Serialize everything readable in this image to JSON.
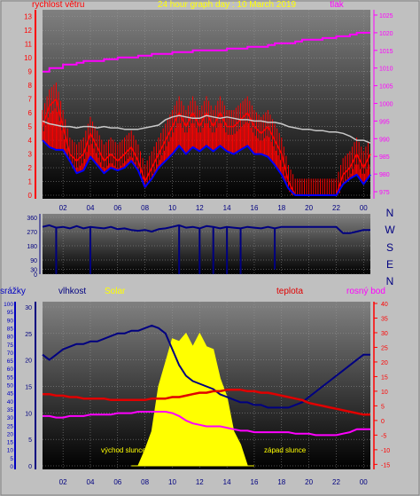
{
  "colors": {
    "background": "#c0c0c0",
    "plot_top": "#808080",
    "plot_bottom": "#000000",
    "wind_gust": "#ff0000",
    "wind_avg": "#0000ff",
    "wind_light": "#c8c8c8",
    "pressure": "#ff00ff",
    "direction": "#000080",
    "humidity": "#000080",
    "temperature": "#e00000",
    "dewpoint": "#ff00ff",
    "solar": "#ffff00",
    "rain_axis": "#0000c0",
    "humidity_axis": "#000080",
    "temp_axis": "#ff0000",
    "title": "#ffff00",
    "sun_label": "#ffff00",
    "compass": "#000080"
  },
  "chart_data": [
    {
      "type": "line",
      "title": "24 hour graph day : 10 March 2019",
      "y_left_label": "rychlost větru",
      "y_right_label": "tlak",
      "x_ticks": [
        "02",
        "04",
        "06",
        "08",
        "10",
        "12",
        "14",
        "16",
        "18",
        "20",
        "22",
        "00"
      ],
      "x_range": [
        0.5,
        24.5
      ],
      "y_left_ticks": [
        0,
        1,
        2,
        3,
        4,
        5,
        6,
        7,
        8,
        9,
        10,
        11,
        12,
        13
      ],
      "y_left_range": [
        0,
        13.5
      ],
      "y_right_ticks": [
        975,
        980,
        985,
        990,
        995,
        1000,
        1005,
        1010,
        1015,
        1020,
        1025
      ],
      "y_right_range": [
        973,
        1026
      ],
      "grid": true,
      "series": [
        {
          "key": "gust",
          "x": [
            0.5,
            1.0,
            1.5,
            2.0,
            2.5,
            3.0,
            3.5,
            4.0,
            4.5,
            5.0,
            5.5,
            6.0,
            6.5,
            7.0,
            7.5,
            8.0,
            8.5,
            9.0,
            9.5,
            10.0,
            10.5,
            11.0,
            11.5,
            12.0,
            12.5,
            13.0,
            13.5,
            14.0,
            14.5,
            15.0,
            15.5,
            16.0,
            16.5,
            17.0,
            17.5,
            18.0,
            18.5,
            19.0,
            19.5,
            20.0,
            20.5,
            21.0,
            21.5,
            22.0,
            22.5,
            23.0,
            23.5,
            24.0,
            24.5
          ],
          "y": [
            5,
            6.5,
            7,
            5,
            3,
            2.5,
            3,
            4.5,
            3.5,
            2.5,
            3,
            2.5,
            3,
            3.5,
            2.5,
            1,
            2,
            3,
            4,
            5,
            6,
            5,
            6,
            5,
            6,
            5,
            6,
            5,
            5,
            5.5,
            6,
            5,
            4.5,
            5,
            4,
            3,
            1,
            0,
            0,
            0,
            0,
            0,
            0,
            0,
            1.5,
            2,
            3,
            2,
            3
          ]
        },
        {
          "key": "average",
          "x": [
            0.5,
            1.0,
            1.5,
            2.0,
            2.5,
            3.0,
            3.5,
            4.0,
            4.5,
            5.0,
            5.5,
            6.0,
            6.5,
            7.0,
            7.5,
            8.0,
            8.5,
            9.0,
            9.5,
            10.0,
            10.5,
            11.0,
            11.5,
            12.0,
            12.5,
            13.0,
            13.5,
            14.0,
            14.5,
            15.0,
            15.5,
            16.0,
            16.5,
            17.0,
            17.5,
            18.0,
            18.5,
            19.0,
            19.5,
            20.0,
            20.5,
            21.0,
            21.5,
            22.0,
            22.5,
            23.0,
            23.5,
            24.0,
            24.5
          ],
          "y": [
            4,
            3.5,
            3.3,
            3.3,
            2.5,
            1.6,
            1.8,
            2.8,
            2.2,
            1.6,
            2,
            1.8,
            2,
            2.5,
            1.8,
            0.6,
            1.2,
            2,
            2.5,
            3,
            3.6,
            3,
            3.5,
            3.2,
            3.6,
            3.2,
            3.6,
            3.2,
            3,
            3.3,
            3.6,
            3,
            3,
            2.8,
            2.2,
            1.5,
            0.5,
            0,
            0,
            0,
            0,
            0,
            0,
            0,
            0.8,
            1.2,
            1.5,
            0.8,
            1.5
          ]
        },
        {
          "key": "average_light",
          "x": [
            0.5,
            1.0,
            1.5,
            2.0,
            2.5,
            3.0,
            3.5,
            4.0,
            4.5,
            5.0,
            5.5,
            6.0,
            6.5,
            7.0,
            7.5,
            8.0,
            8.5,
            9.0,
            9.5,
            10.0,
            10.5,
            11.0,
            11.5,
            12.0,
            12.5,
            13.0,
            13.5,
            14.0,
            14.5,
            15.0,
            15.5,
            16.0,
            16.5,
            17.0,
            17.5,
            18.0,
            18.5,
            19.0,
            19.5,
            20.0,
            20.5,
            21.0,
            21.5,
            22.0,
            22.5,
            23.0,
            23.5,
            24.0,
            24.5
          ],
          "y": [
            5.4,
            5.2,
            5.1,
            5.0,
            5.0,
            4.9,
            5.0,
            5.0,
            4.9,
            5.0,
            4.9,
            4.9,
            4.8,
            4.8,
            4.8,
            4.9,
            5.0,
            5.1,
            5.5,
            5.7,
            5.8,
            5.7,
            5.6,
            5.6,
            5.8,
            5.7,
            5.6,
            5.7,
            5.6,
            5.5,
            5.5,
            5.4,
            5.4,
            5.3,
            5.3,
            5.2,
            5.0,
            4.9,
            4.8,
            4.8,
            4.7,
            4.7,
            4.6,
            4.6,
            4.5,
            4.3,
            4.0,
            4.0,
            3.8
          ]
        },
        {
          "key": "pressure",
          "x": [
            0.5,
            1.0,
            1.5,
            2.0,
            2.5,
            3.0,
            3.5,
            4.0,
            4.5,
            5.0,
            5.5,
            6.0,
            6.5,
            7.0,
            7.5,
            8.0,
            8.5,
            9.0,
            9.5,
            10.0,
            10.5,
            11.0,
            11.5,
            12.0,
            12.5,
            13.0,
            13.5,
            14.0,
            14.5,
            15.0,
            15.5,
            16.0,
            16.5,
            17.0,
            17.5,
            18.0,
            18.5,
            19.0,
            19.5,
            20.0,
            20.5,
            21.0,
            21.5,
            22.0,
            22.5,
            23.0,
            23.5,
            24.0,
            24.5
          ],
          "y": [
            1009,
            1010,
            1010,
            1011,
            1011,
            1011.5,
            1012,
            1012,
            1012,
            1012.5,
            1012.5,
            1013,
            1013,
            1013,
            1013.5,
            1013.5,
            1014,
            1014,
            1014,
            1014.5,
            1014.5,
            1014.5,
            1015,
            1015,
            1015,
            1015,
            1015,
            1015.5,
            1015.5,
            1015.5,
            1016,
            1016,
            1016,
            1016.5,
            1017,
            1017,
            1017,
            1017.5,
            1018,
            1018,
            1018,
            1018.5,
            1018.5,
            1019,
            1019,
            1019.5,
            1020,
            1020,
            1020
          ]
        }
      ]
    },
    {
      "type": "line",
      "y_ticks": [
        0,
        30,
        90,
        180,
        270,
        360
      ],
      "y_range": [
        0,
        360
      ],
      "x_range": [
        0.5,
        24.5
      ],
      "right_labels": [
        "N",
        "W",
        "S",
        "E",
        "N"
      ],
      "grid": true,
      "series": [
        {
          "key": "direction",
          "x": [
            0.5,
            1.0,
            1.5,
            2.0,
            2.5,
            3.0,
            3.5,
            4.0,
            4.5,
            5.0,
            5.5,
            6.0,
            6.5,
            7.0,
            7.5,
            8.0,
            8.5,
            9.0,
            9.5,
            10.0,
            10.5,
            11.0,
            11.5,
            12.0,
            12.5,
            13.0,
            13.5,
            14.0,
            14.5,
            15.0,
            15.5,
            16.0,
            16.5,
            17.0,
            17.5,
            18.0,
            18.5,
            19.0,
            19.5,
            20.0,
            20.5,
            21.0,
            21.5,
            22.0,
            22.5,
            23.0,
            23.5,
            24.0,
            24.5
          ],
          "y": [
            300,
            310,
            295,
            300,
            290,
            305,
            290,
            300,
            295,
            290,
            300,
            285,
            290,
            280,
            275,
            280,
            270,
            285,
            290,
            300,
            310,
            295,
            300,
            290,
            305,
            300,
            290,
            300,
            295,
            290,
            300,
            295,
            290,
            300,
            290,
            300,
            300,
            300,
            300,
            300,
            300,
            300,
            300,
            300,
            260,
            260,
            270,
            280,
            280
          ]
        },
        {
          "key": "direction_drops",
          "x": [
            1.5,
            4.0,
            10.5,
            12.0,
            13.0,
            14.0,
            15.0,
            17.5
          ],
          "y": [
            0,
            0,
            0,
            0,
            0,
            0,
            0,
            30
          ]
        }
      ]
    },
    {
      "type": "area",
      "y_left_label": "srážky",
      "humidity_label": "vlhkost",
      "solar_label": "Solar",
      "temp_label": "teplota",
      "dewpoint_label": "rosný bod",
      "sunrise_label": "východ slunce",
      "sunset_label": "západ slunce",
      "x_ticks": [
        "02",
        "04",
        "06",
        "08",
        "10",
        "12",
        "14",
        "16",
        "18",
        "20",
        "22",
        "00"
      ],
      "x_range": [
        0.5,
        24.5
      ],
      "rain_ticks": [
        0,
        5,
        10,
        15,
        20,
        25,
        30,
        35,
        40,
        45,
        50,
        55,
        60,
        65,
        70,
        75,
        80,
        85,
        90,
        95,
        100
      ],
      "rain_range": [
        0,
        100
      ],
      "humidity_ticks": [
        0,
        5,
        10,
        15,
        20,
        25,
        30
      ],
      "humidity_range": [
        0,
        31
      ],
      "temp_ticks": [
        -15,
        -10,
        -5,
        0,
        5,
        10,
        15,
        20,
        25,
        30,
        35,
        40
      ],
      "temp_range": [
        -15.5,
        40
      ],
      "grid": true,
      "series": [
        {
          "key": "humidity",
          "x": [
            0.5,
            1.0,
            1.5,
            2.0,
            2.5,
            3.0,
            3.5,
            4.0,
            4.5,
            5.0,
            5.5,
            6.0,
            6.5,
            7.0,
            7.5,
            8.0,
            8.5,
            9.0,
            9.5,
            10.0,
            10.5,
            11.0,
            11.5,
            12.0,
            12.5,
            13.0,
            13.5,
            14.0,
            14.5,
            15.0,
            15.5,
            16.0,
            16.5,
            17.0,
            17.5,
            18.0,
            18.5,
            19.0,
            19.5,
            20.0,
            20.5,
            21.0,
            21.5,
            22.0,
            22.5,
            23.0,
            23.5,
            24.0,
            24.5
          ],
          "y": [
            21,
            20,
            21,
            22,
            22.5,
            23,
            23,
            23.5,
            23.5,
            24,
            24.5,
            25,
            25,
            25.5,
            25.5,
            26,
            26.5,
            26,
            25,
            22,
            19,
            17,
            16,
            15.5,
            15,
            14.5,
            13.5,
            13,
            12.5,
            12,
            12,
            11.5,
            11.5,
            11,
            11,
            11,
            11,
            11.5,
            12,
            13,
            14,
            15,
            16,
            17,
            18,
            19,
            20,
            21,
            21
          ]
        },
        {
          "key": "temperature",
          "x": [
            0.5,
            1.0,
            1.5,
            2.0,
            2.5,
            3.0,
            3.5,
            4.0,
            4.5,
            5.0,
            5.5,
            6.0,
            6.5,
            7.0,
            7.5,
            8.0,
            8.5,
            9.0,
            9.5,
            10.0,
            10.5,
            11.0,
            11.5,
            12.0,
            12.5,
            13.0,
            13.5,
            14.0,
            14.5,
            15.0,
            15.5,
            16.0,
            16.5,
            17.0,
            17.5,
            18.0,
            18.5,
            19.0,
            19.5,
            20.0,
            20.5,
            21.0,
            21.5,
            22.0,
            22.5,
            23.0,
            23.5,
            24.0,
            24.5
          ],
          "y": [
            9,
            9,
            8.5,
            8.5,
            8,
            8,
            7.5,
            7.5,
            7.5,
            7.5,
            7,
            7,
            7,
            7,
            7,
            7,
            7.5,
            7.5,
            7.5,
            8,
            8,
            8.5,
            9,
            9.5,
            9.5,
            10,
            10,
            10.5,
            10.5,
            10.5,
            10,
            10,
            9.5,
            9.5,
            9,
            8.5,
            8,
            7.5,
            7,
            6,
            5.5,
            5,
            4.5,
            4,
            3.5,
            3,
            2.5,
            2,
            2
          ]
        },
        {
          "key": "dewpoint",
          "x": [
            0.5,
            1.0,
            1.5,
            2.0,
            2.5,
            3.0,
            3.5,
            4.0,
            4.5,
            5.0,
            5.5,
            6.0,
            6.5,
            7.0,
            7.5,
            8.0,
            8.5,
            9.0,
            9.5,
            10.0,
            10.5,
            11.0,
            11.5,
            12.0,
            12.5,
            13.0,
            13.5,
            14.0,
            14.5,
            15.0,
            15.5,
            16.0,
            16.5,
            17.0,
            17.5,
            18.0,
            18.5,
            19.0,
            19.5,
            20.0,
            20.5,
            21.0,
            21.5,
            22.0,
            22.5,
            23.0,
            23.5,
            24.0,
            24.5
          ],
          "y": [
            1.5,
            1.5,
            1,
            1,
            1.5,
            1.5,
            1.5,
            2,
            2,
            2,
            2,
            2.5,
            2.5,
            2.5,
            3,
            3,
            3,
            3,
            3,
            2.5,
            1.5,
            0,
            -1,
            -1.5,
            -2,
            -2,
            -2,
            -2.5,
            -3,
            -3.5,
            -3.5,
            -4,
            -4,
            -4,
            -4,
            -4,
            -4,
            -4.5,
            -4.5,
            -4.5,
            -5,
            -5,
            -5,
            -5,
            -4.5,
            -4,
            -3,
            -3,
            -3
          ]
        },
        {
          "key": "solar",
          "x": [
            7.0,
            7.5,
            8.0,
            8.5,
            9.0,
            9.5,
            10.0,
            10.5,
            11.0,
            11.5,
            12.0,
            12.5,
            13.0,
            13.5,
            14.0,
            14.5,
            15.0,
            15.5,
            16.0
          ],
          "y": [
            0,
            1,
            3,
            8,
            15,
            21,
            24,
            25,
            25,
            24,
            25,
            24,
            22,
            18,
            13,
            8,
            4,
            1,
            0
          ]
        }
      ]
    }
  ]
}
